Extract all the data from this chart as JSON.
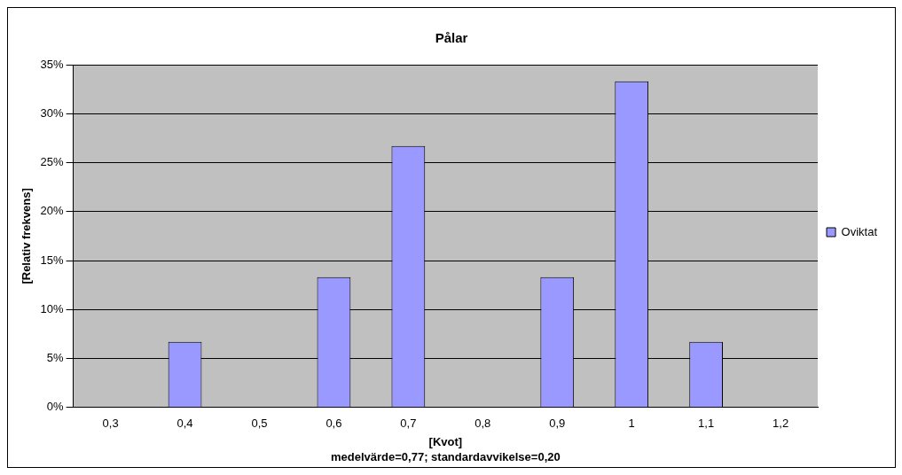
{
  "chart_data": {
    "type": "bar",
    "title": "Pålar",
    "xlabel": "[Kvot]",
    "ylabel": "[Relativ frekvens]",
    "categories": [
      "0,3",
      "0,4",
      "0,5",
      "0,6",
      "0,7",
      "0,8",
      "0,9",
      "1",
      "1,1",
      "1,2"
    ],
    "series": [
      {
        "name": "Oviktat",
        "color": "#9999ff",
        "values": [
          0,
          6.7,
          0,
          13.3,
          26.7,
          0,
          13.3,
          33.3,
          6.7,
          0
        ]
      }
    ],
    "ylim": [
      0,
      35
    ],
    "yticks": [
      {
        "value": 0,
        "label": "0%"
      },
      {
        "value": 5,
        "label": "5%"
      },
      {
        "value": 10,
        "label": "10%"
      },
      {
        "value": 15,
        "label": "15%"
      },
      {
        "value": 20,
        "label": "20%"
      },
      {
        "value": 25,
        "label": "25%"
      },
      {
        "value": 30,
        "label": "30%"
      },
      {
        "value": 35,
        "label": "35%"
      }
    ],
    "grid": "y",
    "legend": "right",
    "annotations": [
      "medelvärde=0,77; standardavvikelse=0,20"
    ]
  }
}
